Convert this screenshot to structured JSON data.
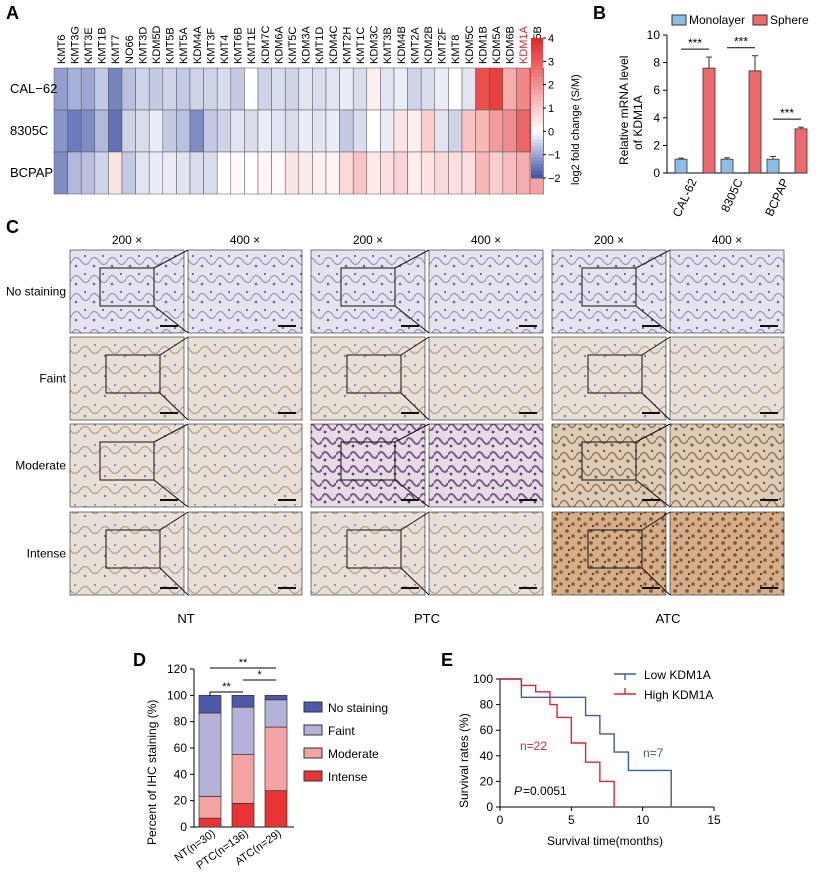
{
  "figure": {
    "panels": {
      "A": "A",
      "B": "B",
      "C": "C",
      "D": "D",
      "E": "E"
    },
    "heatmap": {
      "genes": [
        "KMT6",
        "KMT3G",
        "KMT3E",
        "KMT1B",
        "KMT7",
        "NO66",
        "KMT3D",
        "KDM5D",
        "KMT5B",
        "KMT5A",
        "KDM4A",
        "KMT3F",
        "KMT4",
        "KMT6B",
        "KMT1E",
        "KDM7C",
        "KDM6A",
        "KMT5C",
        "KDM3A",
        "KMT1D",
        "KDM4C",
        "KMT2H",
        "KMT1C",
        "KDM3C",
        "KMT3B",
        "KDM4B",
        "KMT2A",
        "KDM2B",
        "KMT2F",
        "KMT8",
        "KDM5C",
        "KDM1B",
        "KDM5A",
        "KDM6B",
        "KDM1A",
        "KDM5B"
      ],
      "highlight_gene": "KDM1A",
      "highlight_color": "#e0262b",
      "rows": [
        "CAL−62",
        "8305C",
        "BCPAP"
      ],
      "values": [
        [
          -1.1,
          -0.9,
          -1.0,
          -0.6,
          -1.4,
          -0.7,
          -0.5,
          -0.6,
          -0.5,
          -0.6,
          -0.5,
          -0.5,
          -0.4,
          -0.6,
          0.0,
          -0.5,
          -0.4,
          -0.5,
          -0.3,
          -0.4,
          -0.3,
          -0.2,
          -0.4,
          0.3,
          -0.3,
          -0.2,
          -0.5,
          -0.4,
          -0.2,
          0.0,
          -0.3,
          3.2,
          3.5,
          1.5,
          2.2,
          3.3
        ],
        [
          -1.2,
          -1.5,
          -1.3,
          -0.8,
          -1.6,
          -0.5,
          -0.4,
          -0.2,
          -0.6,
          -0.7,
          -1.3,
          -0.6,
          -0.5,
          -0.3,
          -0.4,
          -0.2,
          -0.3,
          -0.4,
          -0.2,
          -0.3,
          -0.2,
          -0.6,
          -0.4,
          0.0,
          -0.2,
          0.5,
          0.3,
          0.9,
          -0.3,
          -0.5,
          1.1,
          1.3,
          1.8,
          2.1,
          2.8,
          3.5
        ],
        [
          -1.3,
          -0.8,
          -0.7,
          -0.5,
          0.5,
          -0.6,
          -0.3,
          -0.2,
          -0.2,
          -0.3,
          -0.4,
          -0.4,
          0.0,
          0.1,
          0.0,
          0.2,
          0.1,
          0.5,
          0.4,
          0.3,
          0.2,
          0.7,
          1.1,
          0.4,
          0.6,
          0.8,
          0.3,
          0.5,
          0.7,
          0.6,
          0.6,
          1.3,
          0.9,
          1.2,
          1.5,
          1.7
        ]
      ],
      "colorbar_label": "log2 fold change (S/M)",
      "colorbar_ticks": [
        "4",
        "3",
        "2",
        "1",
        "0",
        "−1",
        "−2"
      ],
      "colors": {
        "low": "#3b4fa3",
        "mid": "#ffffff",
        "high": "#e52426"
      }
    },
    "chartB": {
      "legend": [
        "Monolayer",
        "Sphere"
      ],
      "ylabel_lines": [
        "Relative mRNA level",
        "of KDM1A"
      ],
      "categories": [
        "CAL-62",
        "8305C",
        "BCPAP"
      ],
      "yticks": [
        "0",
        "2",
        "4",
        "6",
        "8",
        "10"
      ],
      "sig": [
        "***",
        "***",
        "***"
      ],
      "colors": {
        "monolayer": "#8cbfe6",
        "sphere": "#ec6a6d"
      }
    },
    "ihc": {
      "magnifications": [
        "200 ×",
        "400 ×"
      ],
      "row_labels": [
        "No staining",
        "Faint",
        "Moderate",
        "Intense"
      ],
      "group_labels": [
        "NT",
        "PTC",
        "ATC"
      ]
    },
    "chartD": {
      "ylabel": "Percent of IHC staining (%)",
      "yticks": [
        "0",
        "20",
        "40",
        "60",
        "80",
        "100",
        "120"
      ],
      "categories": [
        "NT(n=30)",
        "PTC(n=136)",
        "ATC(n=29)"
      ],
      "legend": [
        "No staining",
        "Faint",
        "Moderate",
        "Intense"
      ],
      "sig": [
        "**",
        "*",
        "**"
      ],
      "colors": {
        "no": "#4e5aa7",
        "faint": "#b5b2d8",
        "moderate": "#f4a3a5",
        "intense": "#ea3334"
      }
    },
    "chartE": {
      "ylabel": "Survival rates (%)",
      "xlabel": "Survival time(months)",
      "xticks": [
        "0",
        "5",
        "10",
        "15"
      ],
      "yticks": [
        "0",
        "20",
        "40",
        "60",
        "80",
        "100"
      ],
      "legend": [
        "Low KDM1A",
        "High KDM1A"
      ],
      "n_high": "n=22",
      "n_low": "n=7",
      "p_label": "P",
      "p_value": "=0.0051",
      "colors": {
        "low": "#3b5aa8",
        "high": "#e0262b"
      }
    }
  },
  "chart_data": [
    {
      "type": "heatmap",
      "title": "",
      "rows": [
        "CAL−62",
        "8305C",
        "BCPAP"
      ],
      "columns": "see figure.heatmap.genes",
      "scale_label": "log2 fold change (S/M)",
      "range": [
        -2,
        4
      ]
    },
    {
      "type": "bar",
      "categories": [
        "CAL-62",
        "8305C",
        "BCPAP"
      ],
      "series": [
        {
          "name": "Monolayer",
          "values": [
            1.0,
            1.0,
            1.0
          ],
          "errors": [
            0.08,
            0.1,
            0.2
          ]
        },
        {
          "name": "Sphere",
          "values": [
            7.6,
            7.4,
            3.2
          ],
          "errors": [
            0.8,
            1.1,
            0.12
          ]
        }
      ],
      "ylabel": "Relative mRNA level of KDM1A",
      "ylim": [
        0,
        10
      ]
    },
    {
      "type": "bar",
      "stacked": true,
      "categories": [
        "NT(n=30)",
        "PTC(n=136)",
        "ATC(n=29)"
      ],
      "series": [
        {
          "name": "Intense",
          "values": [
            6.7,
            18,
            27.6
          ]
        },
        {
          "name": "Moderate",
          "values": [
            16.6,
            37,
            48.3
          ]
        },
        {
          "name": "Faint",
          "values": [
            63.3,
            36,
            20.7
          ]
        },
        {
          "name": "No staining",
          "values": [
            13.4,
            9,
            3.4
          ]
        }
      ],
      "ylabel": "Percent of IHC staining (%)",
      "ylim": [
        0,
        120
      ]
    },
    {
      "type": "line",
      "step": true,
      "series": [
        {
          "name": "Low KDM1A",
          "x": [
            0,
            1.5,
            6,
            7,
            8,
            9,
            12
          ],
          "y": [
            100,
            85.7,
            71.4,
            57.1,
            42.9,
            28.6,
            0
          ]
        },
        {
          "name": "High KDM1A",
          "x": [
            0,
            1.5,
            2.5,
            3.5,
            4,
            5,
            6,
            7,
            8
          ],
          "y": [
            100,
            95,
            90,
            80,
            70,
            50,
            35,
            20,
            0
          ]
        }
      ],
      "xlabel": "Survival time(months)",
      "ylabel": "Survival rates (%)",
      "xlim": [
        0,
        15
      ],
      "ylim": [
        0,
        100
      ]
    }
  ]
}
